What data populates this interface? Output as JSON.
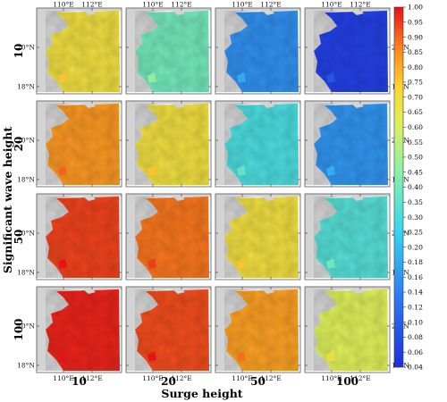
{
  "figure": {
    "xlabel": "Surge height",
    "ylabel": "Significant wave height",
    "col_labels": [
      "10",
      "20",
      "50",
      "100"
    ],
    "row_labels": [
      "10",
      "20",
      "50",
      "100"
    ],
    "lon_ticks": [
      "110°E",
      "112°E"
    ],
    "lat_ticks": [
      "20°N",
      "18°N"
    ]
  },
  "colorbar": {
    "min": 0.04,
    "max": 1.0,
    "ticks": [
      "1.00",
      "0.95",
      "0.90",
      "0.85",
      "0.80",
      "0.75",
      "0.70",
      "0.65",
      "0.60",
      "0.55",
      "0.50",
      "0.45",
      "0.40",
      "0.35",
      "0.30",
      "0.25",
      "0.20",
      "0.18",
      "0.16",
      "0.14",
      "0.12",
      "0.10",
      "0.08",
      "0.06",
      "0.04"
    ]
  },
  "land_color": "#d3d3d3",
  "panels": [
    [
      0.74,
      0.5,
      0.24,
      0.05
    ],
    [
      0.86,
      0.74,
      0.42,
      0.25
    ],
    [
      0.95,
      0.9,
      0.74,
      0.44
    ],
    [
      0.98,
      0.94,
      0.85,
      0.68
    ]
  ]
}
